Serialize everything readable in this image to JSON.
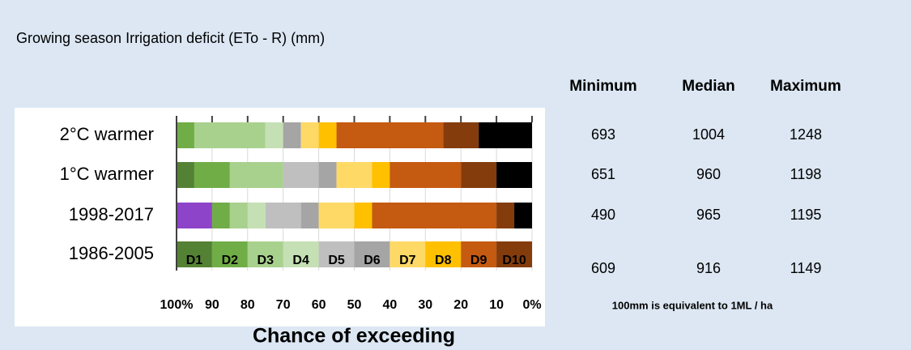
{
  "title": "Growing season Irrigation deficit (ETo - R)  (mm)",
  "chart_data": {
    "type": "stacked-bar",
    "orientation": "horizontal",
    "xlabel": "Chance of exceeding",
    "categories": [
      "2°C warmer",
      "1°C warmer",
      "1998-2017",
      "1986-2005"
    ],
    "xlim": [
      100,
      0
    ],
    "xticks": [
      {
        "value": 100,
        "label": "100%"
      },
      90,
      80,
      70,
      60,
      50,
      40,
      30,
      20,
      10,
      {
        "value": 0,
        "label": "0%"
      }
    ],
    "grid": true,
    "series": [
      {
        "color": "#8e44c9",
        "values": [
          0,
          0,
          10,
          0
        ]
      },
      {
        "name": "D1",
        "color": "#548235",
        "values": [
          0,
          5,
          0,
          10
        ]
      },
      {
        "name": "D2",
        "color": "#70ad47",
        "values": [
          5,
          10,
          5,
          10
        ]
      },
      {
        "name": "D3",
        "color": "#a9d18e",
        "values": [
          20,
          15,
          5,
          10
        ]
      },
      {
        "name": "D4",
        "color": "#c5e0b4",
        "values": [
          5,
          0,
          5,
          10
        ]
      },
      {
        "name": "D5",
        "color": "#bfbfbf",
        "values": [
          0,
          10,
          10,
          10
        ]
      },
      {
        "name": "D6",
        "color": "#a5a5a5",
        "values": [
          5,
          5,
          5,
          10
        ]
      },
      {
        "name": "D7",
        "color": "#ffd966",
        "values": [
          5,
          10,
          10,
          10
        ]
      },
      {
        "name": "D8",
        "color": "#ffc000",
        "values": [
          5,
          5,
          5,
          10
        ]
      },
      {
        "name": "D9",
        "color": "#c55a11",
        "values": [
          30,
          20,
          35,
          10
        ]
      },
      {
        "name": "D10",
        "color": "#843c0c",
        "values": [
          10,
          10,
          5,
          10
        ]
      },
      {
        "color": "#000000",
        "values": [
          15,
          10,
          5,
          0
        ]
      }
    ]
  },
  "table": {
    "columns": [
      "Minimum",
      "Median",
      "Maximum"
    ],
    "rows": [
      [
        693,
        1004,
        1248
      ],
      [
        651,
        960,
        1198
      ],
      [
        490,
        965,
        1195
      ],
      [
        609,
        916,
        1149
      ]
    ],
    "note": "100mm  is equivalent to  1ML / ha"
  }
}
